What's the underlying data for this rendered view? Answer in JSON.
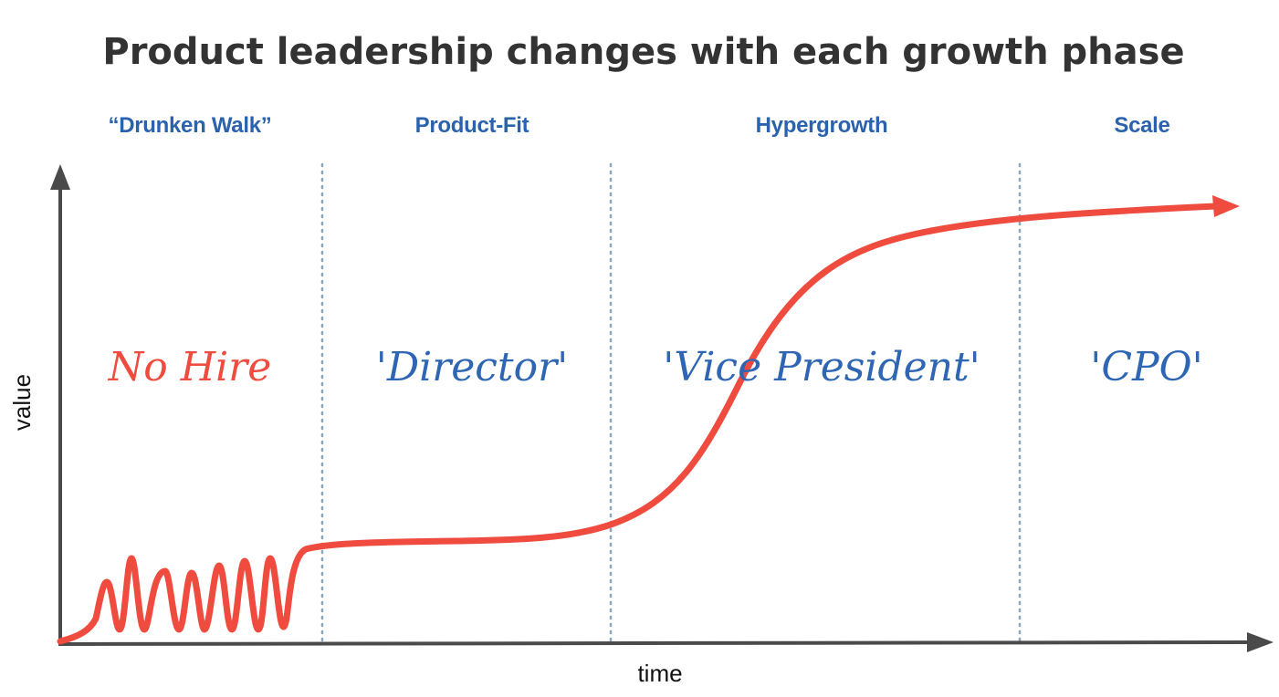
{
  "title": "Product leadership changes with each growth phase",
  "axes": {
    "x_label": "time",
    "y_label": "value"
  },
  "phases": [
    {
      "label": "“Drunken Walk”",
      "role": "No Hire",
      "role_color": "#ef4b3e"
    },
    {
      "label": "Product-Fit",
      "role": "'Director'",
      "role_color": "#2f66b4"
    },
    {
      "label": "Hypergrowth",
      "role": "'Vice President'",
      "role_color": "#2f66b4"
    },
    {
      "label": "Scale",
      "role": "'CPO'",
      "role_color": "#2f66b4"
    }
  ],
  "colors": {
    "curve": "#ef4b3e",
    "axis": "#4a4a4a",
    "divider": "#8aa6b8",
    "phase_label": "#2a62ad",
    "title": "#333333"
  }
}
